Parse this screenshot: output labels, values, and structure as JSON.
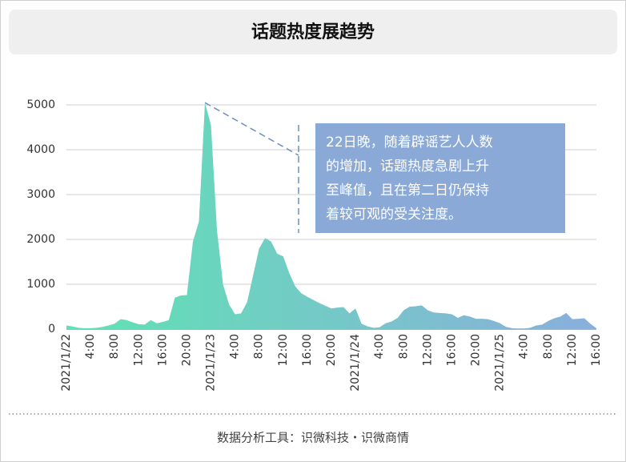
{
  "chart_data": {
    "type": "area",
    "title": "话题热度展趋势",
    "categories": [
      "2021/1/22",
      null,
      null,
      null,
      "4:00",
      null,
      null,
      null,
      "8:00",
      null,
      null,
      null,
      "12:00",
      null,
      null,
      null,
      "16:00",
      null,
      null,
      null,
      "20:00",
      null,
      null,
      null,
      "2021/1/23",
      null,
      null,
      null,
      "4:00",
      null,
      null,
      null,
      "8:00",
      null,
      null,
      null,
      "12:00",
      null,
      null,
      null,
      "16:00",
      null,
      null,
      null,
      "20:00",
      null,
      null,
      null,
      "2021/1/24",
      null,
      null,
      null,
      "4:00",
      null,
      null,
      null,
      "8:00",
      null,
      null,
      null,
      "12:00",
      null,
      null,
      null,
      "16:00",
      null,
      null,
      null,
      "20:00",
      null,
      null,
      null,
      "2021/1/25",
      null,
      null,
      null,
      "4:00",
      null,
      null,
      null,
      "8:00",
      null,
      null,
      null,
      "12:00",
      null,
      null,
      null,
      "16:00"
    ],
    "values": [
      80,
      60,
      30,
      20,
      20,
      30,
      50,
      80,
      120,
      220,
      200,
      150,
      110,
      100,
      200,
      130,
      160,
      200,
      700,
      750,
      760,
      1950,
      2400,
      5050,
      4550,
      2200,
      1000,
      550,
      330,
      350,
      600,
      1200,
      1800,
      2030,
      1950,
      1680,
      1620,
      1250,
      950,
      800,
      720,
      650,
      580,
      520,
      460,
      480,
      490,
      350,
      460,
      120,
      60,
      30,
      40,
      130,
      170,
      250,
      420,
      500,
      510,
      530,
      420,
      370,
      360,
      350,
      330,
      250,
      310,
      280,
      230,
      230,
      220,
      180,
      130,
      50,
      20,
      10,
      10,
      30,
      80,
      100,
      180,
      240,
      280,
      360,
      220,
      230,
      240,
      120,
      20
    ],
    "colors": [
      "#5fe3b3",
      "#8aaedc"
    ],
    "ylim": [
      0,
      5000
    ],
    "yticks": [
      0,
      1000,
      2000,
      3000,
      4000,
      5000
    ],
    "grid": true,
    "annotation": [
      "22日晚，随着辟谣艺人人数",
      "的增加，话题热度急剧上升",
      "至峰值，且在第二日仍保持",
      "着较可观的受关注度。"
    ],
    "footer": "数据分析工具：识微科技・识微商情"
  }
}
